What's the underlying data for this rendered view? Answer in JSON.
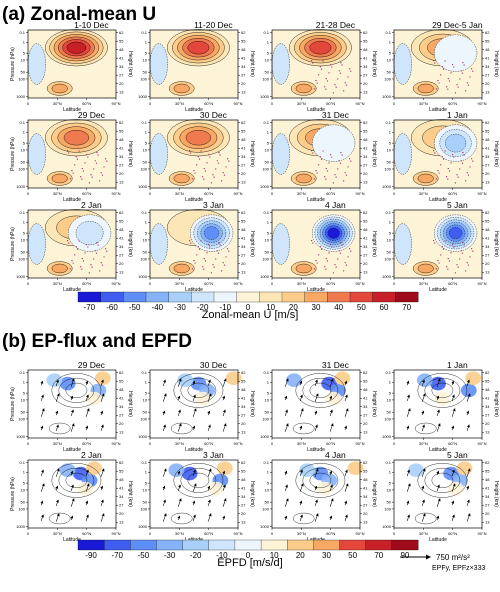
{
  "section_a": {
    "title": "(a) Zonal-mean U",
    "panels": [
      "1-10 Dec",
      "11-20 Dec",
      "21-28 Dec",
      "29 Dec-5 Jan",
      "29 Dec",
      "30 Dec",
      "31 Dec",
      "1 Jan",
      "2 Jan",
      "3 Jan",
      "4 Jan",
      "5 Jan"
    ],
    "colorbar_label": "Zonal-mean U [m/s]",
    "colorbar_ticks": [
      "-70",
      "-60",
      "-50",
      "-40",
      "-30",
      "-20",
      "-10",
      "0",
      "10",
      "20",
      "30",
      "40",
      "50",
      "60",
      "70"
    ]
  },
  "section_b": {
    "title": "(b) EP-flux and EPFD",
    "panels": [
      "29 Dec",
      "30 Dec",
      "31 Dec",
      "1 Jan",
      "2 Jan",
      "3 Jan",
      "4 Jan",
      "5 Jan"
    ],
    "colorbar_label": "EPFD [m/s/d]",
    "colorbar_ticks": [
      "-90",
      "-70",
      "-50",
      "-30",
      "-20",
      "-10",
      "0",
      "10",
      "20",
      "30",
      "50",
      "70",
      "90"
    ],
    "vector_ref": "750 m²/s²",
    "vector_note": "EPFy, EPFz×333"
  },
  "axes": {
    "xlabel": "Latitude",
    "ylabel": "Pressure (hPa)",
    "ylabel_right": "Height (km)",
    "x_ticks": [
      "0",
      "30°N",
      "60°N",
      "90°N"
    ],
    "y_ticks": [
      "0.1",
      "1",
      "5",
      "10",
      "50",
      "100",
      "1000"
    ],
    "y2_ticks": [
      "62",
      "55",
      "48",
      "41",
      "34",
      "27",
      "20",
      "13"
    ]
  },
  "colors": {
    "u_scale": [
      "#1a1ad6",
      "#3f5ef0",
      "#5e8ef6",
      "#86b3f8",
      "#a8d0fa",
      "#cfe5fb",
      "#eef6fd",
      "#fdf3d7",
      "#fce6b6",
      "#fbcc8a",
      "#f7a865",
      "#ef7a50",
      "#e3473b",
      "#c82028",
      "#9e0b1a"
    ],
    "epfd_scale": [
      "#1a1ad6",
      "#3f5ef0",
      "#5e8ef6",
      "#86b3f8",
      "#a8d0fa",
      "#cfe5fb",
      "#eef6fd",
      "#fdf3d7",
      "#fbcc8a",
      "#f7a865",
      "#e3473b",
      "#c82028",
      "#9e0b1a"
    ],
    "stipple": "#9b1e6e"
  },
  "chart_data": [
    {
      "type": "heatmap",
      "title": "(a) Zonal-mean U",
      "panels": [
        "1-10 Dec",
        "11-20 Dec",
        "21-28 Dec",
        "29 Dec-5 Jan",
        "29 Dec",
        "30 Dec",
        "31 Dec",
        "1 Jan",
        "2 Jan",
        "3 Jan",
        "4 Jan",
        "5 Jan"
      ],
      "xlabel": "Latitude",
      "ylabel": "Pressure (hPa)",
      "y2label": "Height (km)",
      "xlim": [
        0,
        90
      ],
      "ylim": [
        1000,
        0.1
      ],
      "yscale": "log",
      "colorbar": {
        "label": "Zonal-mean U [m/s]",
        "min": -70,
        "max": 70,
        "step": 10
      },
      "jet_max_approx": [
        60,
        50,
        50,
        30,
        40,
        40,
        30,
        20,
        20,
        10,
        0,
        0
      ],
      "polar_cell_min_approx": [
        0,
        0,
        0,
        -10,
        0,
        0,
        -10,
        -30,
        -20,
        -50,
        -70,
        -60
      ]
    },
    {
      "type": "heatmap",
      "title": "(b) EP-flux and EPFD",
      "panels": [
        "29 Dec",
        "30 Dec",
        "31 Dec",
        "1 Jan",
        "2 Jan",
        "3 Jan",
        "4 Jan",
        "5 Jan"
      ],
      "xlabel": "Latitude",
      "ylabel": "Pressure (hPa)",
      "y2label": "Height (km)",
      "colorbar": {
        "label": "EPFD [m/s/d]",
        "levels": [
          -90,
          -70,
          -50,
          -30,
          -20,
          -10,
          0,
          10,
          20,
          30,
          50,
          70,
          90
        ]
      },
      "vector_reference": "750 m²/s²",
      "vector_components": "EPFy, EPFz×333"
    }
  ]
}
